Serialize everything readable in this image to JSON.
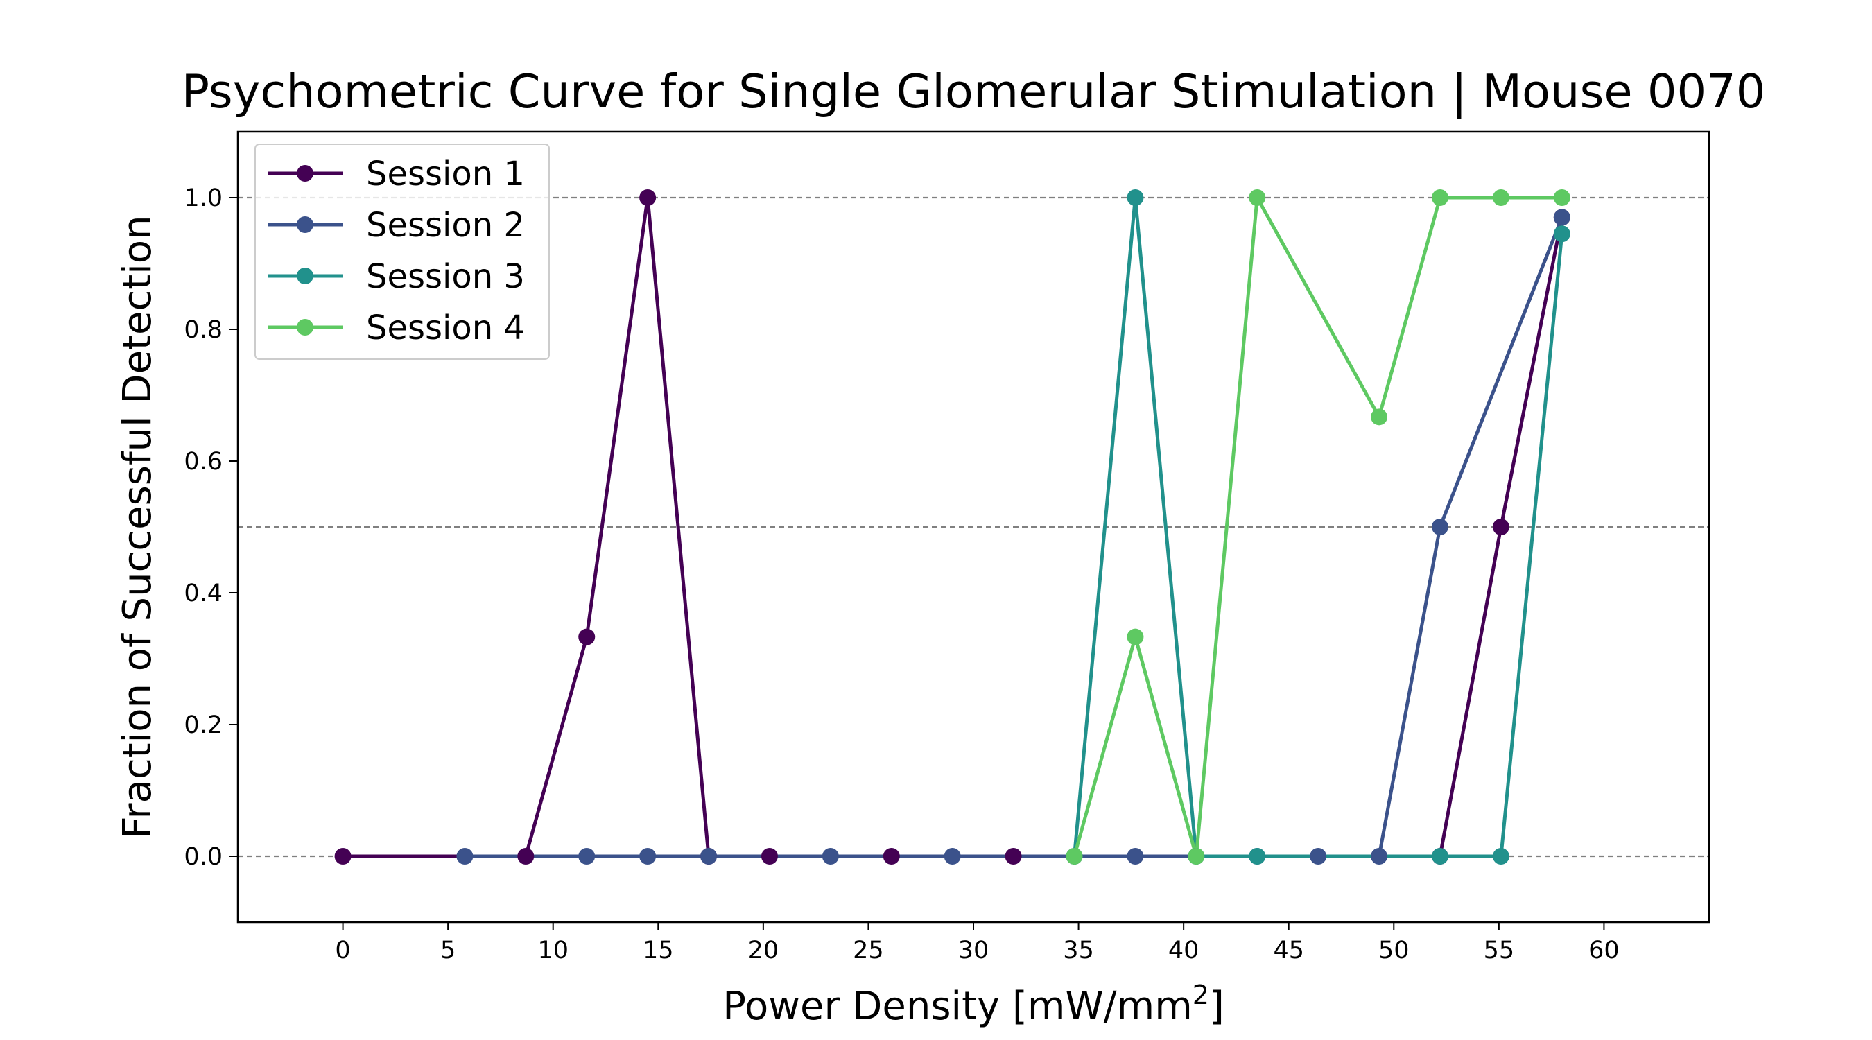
{
  "chart_data": {
    "type": "line",
    "title": "Psychometric Curve for Single Glomerular Stimulation | Mouse 0070",
    "xlabel_main": "Power Density [mW/mm",
    "xlabel_sup": "2",
    "xlabel_end": "]",
    "ylabel": "Fraction of Successful Detection",
    "xlim": [
      -5,
      65
    ],
    "ylim": [
      -0.1,
      1.1
    ],
    "xticks": [
      0,
      5,
      10,
      15,
      20,
      25,
      30,
      35,
      40,
      45,
      50,
      55,
      60
    ],
    "yticks": [
      0.0,
      0.2,
      0.4,
      0.6,
      0.8,
      1.0
    ],
    "reference_lines": [
      0.0,
      0.5,
      1.0
    ],
    "grid": false,
    "legend_position": "top-left",
    "series": [
      {
        "name": "Session 1",
        "color": "#440154",
        "x": [
          0,
          8.7,
          11.6,
          14.5,
          17.4,
          20.3,
          26.1,
          31.9,
          52.2,
          55.1,
          58.0
        ],
        "y": [
          0,
          0,
          0.333,
          1.0,
          0,
          0,
          0,
          0,
          0,
          0.5,
          0.97
        ]
      },
      {
        "name": "Session 2",
        "color": "#3b528b",
        "x": [
          5.8,
          11.6,
          14.5,
          17.4,
          23.2,
          29.0,
          34.8,
          37.7,
          40.6,
          43.5,
          46.4,
          49.3,
          52.2,
          58.0
        ],
        "y": [
          0,
          0,
          0,
          0,
          0,
          0,
          0,
          0,
          0,
          0,
          0,
          0,
          0.5,
          0.97
        ]
      },
      {
        "name": "Session 3",
        "color": "#21918c",
        "x": [
          34.8,
          37.7,
          40.6,
          43.5,
          52.2,
          55.1,
          58.0
        ],
        "y": [
          0,
          1.0,
          0,
          0,
          0,
          0,
          0.945
        ]
      },
      {
        "name": "Session 4",
        "color": "#5ec962",
        "x": [
          34.8,
          37.7,
          40.6,
          43.5,
          49.3,
          52.2,
          55.1,
          58.0
        ],
        "y": [
          0,
          0.333,
          0,
          1.0,
          0.667,
          1.0,
          1.0,
          1.0
        ]
      }
    ]
  }
}
